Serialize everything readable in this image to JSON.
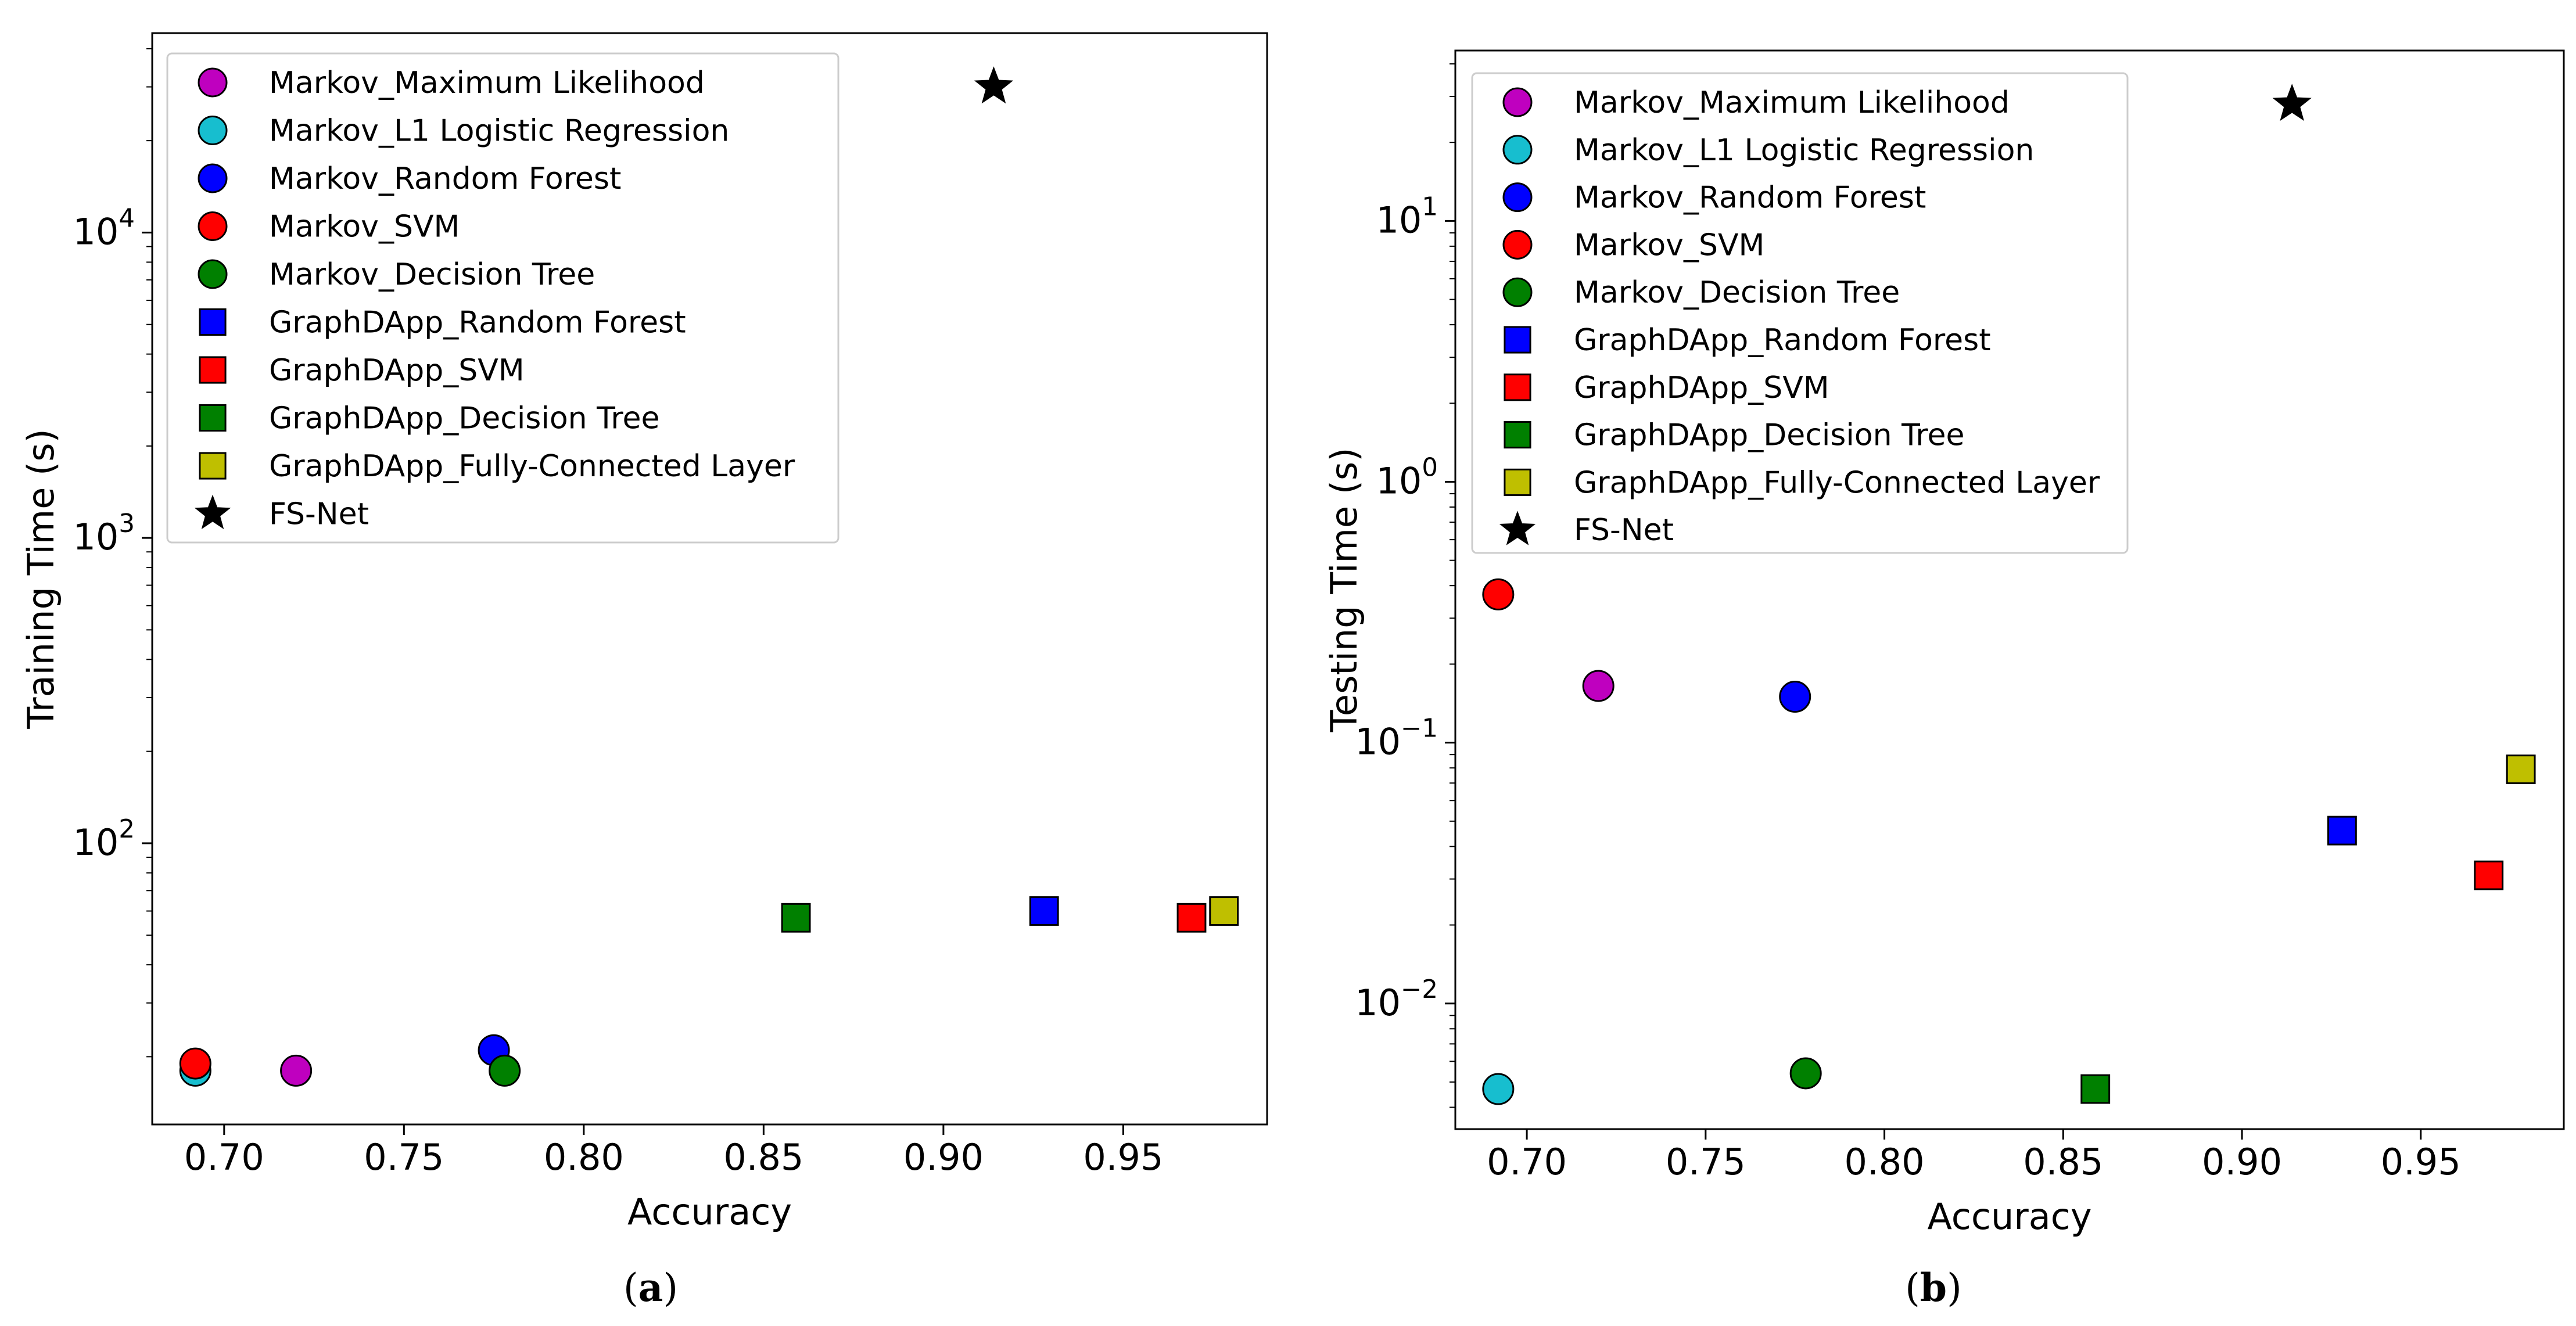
{
  "chart_data": [
    {
      "type": "scatter",
      "panel": "a",
      "caption_letter": "a",
      "xlabel": "Accuracy",
      "ylabel": "Training Time (s)",
      "xscale": "linear",
      "yscale": "log",
      "xlim": [
        0.68,
        0.99
      ],
      "ylim": [
        12,
        45000
      ],
      "xticks": [
        0.7,
        0.75,
        0.8,
        0.85,
        0.9,
        0.95
      ],
      "xtick_labels": [
        "0.70",
        "0.75",
        "0.80",
        "0.85",
        "0.90",
        "0.95"
      ],
      "yticks": [
        100,
        1000,
        10000
      ],
      "ytick_labels": [
        {
          "base": "10",
          "exp": "2"
        },
        {
          "base": "10",
          "exp": "3"
        },
        {
          "base": "10",
          "exp": "4"
        }
      ],
      "legend_position": "upper-left",
      "series": [
        {
          "name": "Markov_Maximum Likelihood",
          "marker": "circle",
          "color": "#bf00bf",
          "x": 0.72,
          "y": 18
        },
        {
          "name": "Markov_L1 Logistic Regression",
          "marker": "circle",
          "color": "#17becf",
          "x": 0.692,
          "y": 18
        },
        {
          "name": "Markov_Random Forest",
          "marker": "circle",
          "color": "#0000ff",
          "x": 0.775,
          "y": 21
        },
        {
          "name": "Markov_SVM",
          "marker": "circle",
          "color": "#ff0000",
          "x": 0.692,
          "y": 19
        },
        {
          "name": "Markov_Decision Tree",
          "marker": "circle",
          "color": "#008000",
          "x": 0.778,
          "y": 18
        },
        {
          "name": "GraphDApp_Random Forest",
          "marker": "square",
          "color": "#0000ff",
          "x": 0.928,
          "y": 60
        },
        {
          "name": "GraphDApp_SVM",
          "marker": "square",
          "color": "#ff0000",
          "x": 0.969,
          "y": 57
        },
        {
          "name": "GraphDApp_Decision Tree",
          "marker": "square",
          "color": "#008000",
          "x": 0.859,
          "y": 57
        },
        {
          "name": "GraphDApp_Fully-Connected Layer",
          "marker": "square",
          "color": "#bfbf00",
          "x": 0.978,
          "y": 60
        },
        {
          "name": "FS-Net",
          "marker": "star",
          "color": "#000000",
          "x": 0.914,
          "y": 30000
        }
      ]
    },
    {
      "type": "scatter",
      "panel": "b",
      "caption_letter": "b",
      "xlabel": "Accuracy",
      "ylabel": "Testing Time (s)",
      "xscale": "linear",
      "yscale": "log",
      "xlim": [
        0.68,
        0.99
      ],
      "ylim": [
        0.0033,
        45
      ],
      "xticks": [
        0.7,
        0.75,
        0.8,
        0.85,
        0.9,
        0.95
      ],
      "xtick_labels": [
        "0.70",
        "0.75",
        "0.80",
        "0.85",
        "0.90",
        "0.95"
      ],
      "yticks": [
        0.01,
        0.1,
        1,
        10
      ],
      "ytick_labels": [
        {
          "base": "10",
          "exp": "−2"
        },
        {
          "base": "10",
          "exp": "−1"
        },
        {
          "base": "10",
          "exp": "0"
        },
        {
          "base": "10",
          "exp": "1"
        }
      ],
      "legend_position": "upper-left",
      "series": [
        {
          "name": "Markov_Maximum Likelihood",
          "marker": "circle",
          "color": "#bf00bf",
          "x": 0.72,
          "y": 0.165
        },
        {
          "name": "Markov_L1 Logistic Regression",
          "marker": "circle",
          "color": "#17becf",
          "x": 0.692,
          "y": 0.0047
        },
        {
          "name": "Markov_Random Forest",
          "marker": "circle",
          "color": "#0000ff",
          "x": 0.775,
          "y": 0.15
        },
        {
          "name": "Markov_SVM",
          "marker": "circle",
          "color": "#ff0000",
          "x": 0.692,
          "y": 0.37
        },
        {
          "name": "Markov_Decision Tree",
          "marker": "circle",
          "color": "#008000",
          "x": 0.778,
          "y": 0.0054
        },
        {
          "name": "GraphDApp_Random Forest",
          "marker": "square",
          "color": "#0000ff",
          "x": 0.928,
          "y": 0.046
        },
        {
          "name": "GraphDApp_SVM",
          "marker": "square",
          "color": "#ff0000",
          "x": 0.969,
          "y": 0.031
        },
        {
          "name": "GraphDApp_Decision Tree",
          "marker": "square",
          "color": "#008000",
          "x": 0.859,
          "y": 0.0047
        },
        {
          "name": "GraphDApp_Fully-Connected Layer",
          "marker": "square",
          "color": "#bfbf00",
          "x": 0.978,
          "y": 0.079
        },
        {
          "name": "FS-Net",
          "marker": "star",
          "color": "#000000",
          "x": 0.914,
          "y": 28
        }
      ]
    }
  ]
}
